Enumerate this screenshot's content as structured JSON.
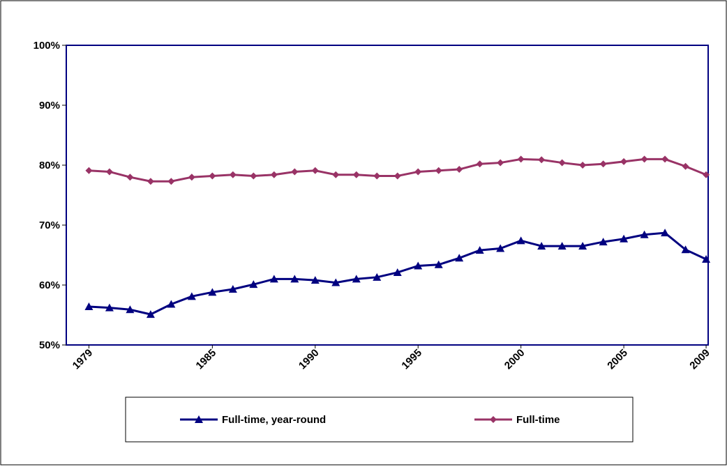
{
  "chart_data": {
    "type": "line",
    "x": [
      1979,
      1980,
      1981,
      1982,
      1983,
      1984,
      1985,
      1986,
      1987,
      1988,
      1989,
      1990,
      1991,
      1992,
      1993,
      1994,
      1995,
      1996,
      1997,
      1998,
      1999,
      2000,
      2001,
      2002,
      2003,
      2004,
      2005,
      2006,
      2007,
      2008,
      2009
    ],
    "series": [
      {
        "name": "Full-time, year-round",
        "color": "#000080",
        "marker": "triangle",
        "values": [
          56.4,
          56.2,
          55.9,
          55.1,
          56.8,
          58.1,
          58.8,
          59.3,
          60.1,
          61.0,
          61.0,
          60.8,
          60.4,
          61.0,
          61.3,
          62.1,
          63.2,
          63.4,
          64.5,
          65.8,
          66.1,
          67.4,
          66.5,
          66.5,
          66.5,
          67.2,
          67.7,
          68.4,
          68.7,
          65.9,
          64.3
        ]
      },
      {
        "name": "Full-time",
        "color": "#993366",
        "marker": "diamond",
        "values": [
          79.1,
          78.9,
          78.0,
          77.3,
          77.3,
          78.0,
          78.2,
          78.4,
          78.2,
          78.4,
          78.9,
          79.1,
          78.4,
          78.4,
          78.2,
          78.2,
          78.9,
          79.1,
          79.3,
          80.2,
          80.4,
          81.0,
          80.9,
          80.4,
          80.0,
          80.2,
          80.6,
          81.0,
          81.0,
          79.8,
          78.4
        ]
      }
    ],
    "xlim": [
      1977.9,
      2009.1
    ],
    "xticks": [
      1979,
      1985,
      1990,
      1995,
      2000,
      2005,
      2009
    ],
    "ylim": [
      50,
      100
    ],
    "yticks": [
      {
        "value": 50,
        "label": "50%"
      },
      {
        "value": 60,
        "label": "60%"
      },
      {
        "value": 70,
        "label": "70%"
      },
      {
        "value": 80,
        "label": "80%"
      },
      {
        "value": 90,
        "label": "90%"
      },
      {
        "value": 100,
        "label": "100%"
      }
    ],
    "grid": false
  }
}
